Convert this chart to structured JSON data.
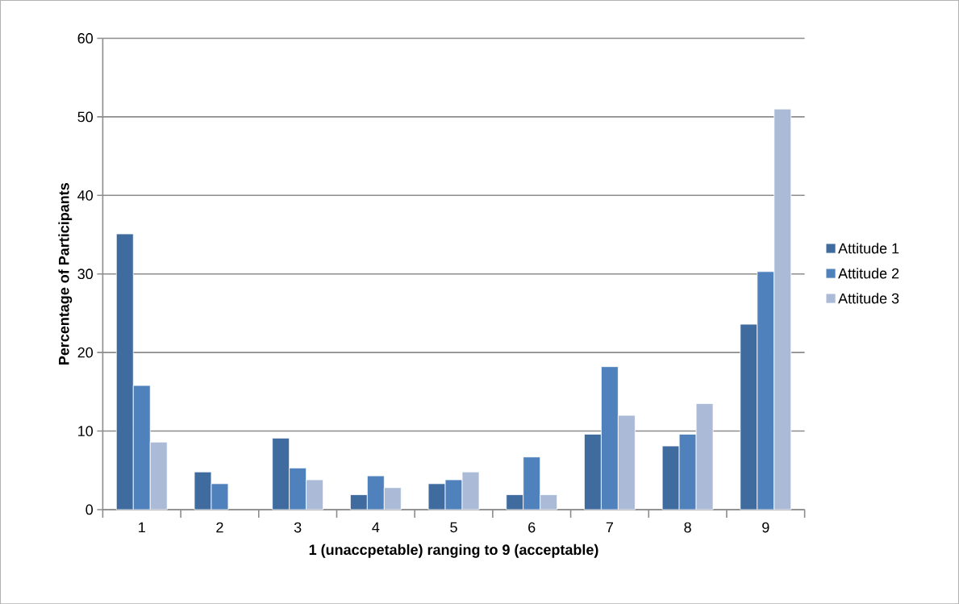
{
  "chart_data": {
    "type": "bar",
    "xlabel": "1 (unaccpetable) ranging to 9 (acceptable)",
    "ylabel": "Percentage of Participants",
    "categories": [
      "1",
      "2",
      "3",
      "4",
      "5",
      "6",
      "7",
      "8",
      "9"
    ],
    "series": [
      {
        "name": "Attitude 1",
        "color": "#3f6b9e",
        "values": [
          35.1,
          4.8,
          9.1,
          1.9,
          3.3,
          1.9,
          9.6,
          8.1,
          23.6
        ]
      },
      {
        "name": "Attitude 2",
        "color": "#4f81bd",
        "values": [
          15.8,
          3.3,
          5.3,
          4.3,
          3.8,
          6.7,
          18.2,
          9.6,
          30.3
        ]
      },
      {
        "name": "Attitude 3",
        "color": "#aabad7",
        "values": [
          8.6,
          null,
          3.8,
          2.8,
          4.8,
          1.9,
          12.0,
          13.5,
          51.0
        ]
      }
    ],
    "ylim": [
      0,
      60
    ],
    "yticks": [
      0,
      10,
      20,
      30,
      40,
      50,
      60
    ],
    "grid": "y",
    "legend": "right"
  }
}
